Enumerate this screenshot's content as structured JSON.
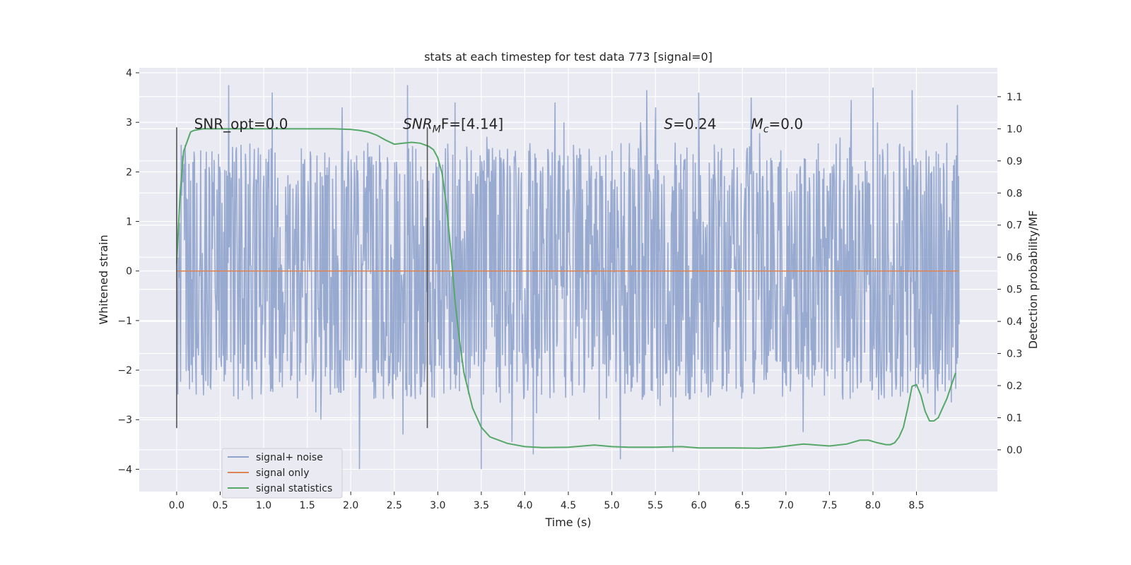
{
  "chart_data": {
    "type": "line",
    "title": "stats at each timestep for test data 773 [signal=0]",
    "xlabel": "Time (s)",
    "ylabel_left": "Whitened strain",
    "ylabel_right": "Detection probability/MF",
    "xlim": [
      -0.43,
      9.43
    ],
    "ylim_left": [
      -4.45,
      4.1
    ],
    "ylim_right": [
      -0.13,
      1.19
    ],
    "x_ticks": [
      0.0,
      0.5,
      1.0,
      1.5,
      2.0,
      2.5,
      3.0,
      3.5,
      4.0,
      4.5,
      5.0,
      5.5,
      6.0,
      6.5,
      7.0,
      7.5,
      8.0,
      8.5
    ],
    "x_tick_labels": [
      "0.0",
      "0.5",
      "1.0",
      "1.5",
      "2.0",
      "2.5",
      "3.0",
      "3.5",
      "4.0",
      "4.5",
      "5.0",
      "5.5",
      "6.0",
      "6.5",
      "7.0",
      "7.5",
      "8.0",
      "8.5"
    ],
    "y_left_ticks": [
      -4,
      -3,
      -2,
      -1,
      0,
      1,
      2,
      3,
      4
    ],
    "y_left_tick_labels": [
      "−4",
      "−3",
      "−2",
      "−1",
      "0",
      "1",
      "2",
      "3",
      "4"
    ],
    "y_right_ticks": [
      0.0,
      0.1,
      0.2,
      0.3,
      0.4,
      0.5,
      0.6,
      0.7,
      0.8,
      0.9,
      1.0,
      1.1
    ],
    "y_right_tick_labels": [
      "0.0",
      "0.1",
      "0.2",
      "0.3",
      "0.4",
      "0.5",
      "0.6",
      "0.7",
      "0.8",
      "0.9",
      "1.0",
      "1.1"
    ],
    "grid": true,
    "colors": {
      "background": "#eaeaf2",
      "grid": "#ffffff",
      "noise": "#8fa3cc",
      "signal": "#dd8452",
      "stats": "#55a868",
      "vline": "#555555"
    },
    "noise_band": {
      "time_range": [
        0.0,
        8.99
      ],
      "typical_range": [
        -1.5,
        1.7
      ],
      "min": -4.0,
      "max": 3.75
    },
    "vertical_lines": [
      0.0,
      2.88
    ],
    "vertical_line_range": [
      -3.17,
      2.9
    ],
    "series": [
      {
        "name": "signal+ noise",
        "axis": "left",
        "kind": "noise",
        "spikes": [
          {
            "x": 0.6,
            "y": 3.75
          },
          {
            "x": 1.1,
            "y": 3.6
          },
          {
            "x": 1.9,
            "y": 3.3
          },
          {
            "x": 2.65,
            "y": 3.75
          },
          {
            "x": 3.2,
            "y": 3.4
          },
          {
            "x": 4.35,
            "y": 3.4
          },
          {
            "x": 5.4,
            "y": 3.65
          },
          {
            "x": 5.5,
            "y": 3.3
          },
          {
            "x": 6.0,
            "y": 3.6
          },
          {
            "x": 6.6,
            "y": 3.5
          },
          {
            "x": 7.75,
            "y": 3.45
          },
          {
            "x": 8.0,
            "y": 3.7
          },
          {
            "x": 8.45,
            "y": 3.65
          },
          {
            "x": 8.97,
            "y": 3.35
          },
          {
            "x": 2.1,
            "y": -4.0
          },
          {
            "x": 3.5,
            "y": -4.0
          },
          {
            "x": 2.6,
            "y": -3.3
          },
          {
            "x": 3.85,
            "y": -3.45
          },
          {
            "x": 4.1,
            "y": -3.7
          },
          {
            "x": 5.1,
            "y": -3.8
          },
          {
            "x": 5.7,
            "y": -3.65
          },
          {
            "x": 7.2,
            "y": -3.25
          },
          {
            "x": 1.6,
            "y": -2.85
          },
          {
            "x": 8.9,
            "y": -2.65
          }
        ]
      },
      {
        "name": "signal only",
        "axis": "left",
        "kind": "line",
        "x": [
          0.0,
          8.99
        ],
        "y": [
          0.0,
          0.0
        ]
      },
      {
        "name": "signal statistics",
        "axis": "right",
        "kind": "line",
        "x": [
          0.0,
          0.04,
          0.08,
          0.12,
          0.16,
          0.2,
          0.3,
          0.5,
          1.0,
          1.5,
          1.8,
          2.0,
          2.1,
          2.2,
          2.3,
          2.4,
          2.5,
          2.6,
          2.7,
          2.8,
          2.9,
          2.95,
          3.0,
          3.05,
          3.1,
          3.15,
          3.2,
          3.25,
          3.3,
          3.4,
          3.5,
          3.6,
          3.8,
          4.0,
          4.2,
          4.5,
          4.8,
          5.0,
          5.2,
          5.5,
          5.8,
          6.0,
          6.4,
          6.7,
          6.9,
          7.1,
          7.2,
          7.3,
          7.5,
          7.7,
          7.85,
          7.95,
          8.05,
          8.15,
          8.2,
          8.25,
          8.3,
          8.35,
          8.4,
          8.45,
          8.5,
          8.55,
          8.6,
          8.65,
          8.7,
          8.75,
          8.8,
          8.85,
          8.9,
          8.95
        ],
        "y": [
          0.58,
          0.8,
          0.93,
          0.96,
          0.99,
          0.995,
          1.0,
          1.0,
          1.0,
          1.0,
          1.0,
          0.998,
          0.995,
          0.99,
          0.98,
          0.965,
          0.952,
          0.955,
          0.958,
          0.955,
          0.945,
          0.935,
          0.91,
          0.86,
          0.76,
          0.62,
          0.46,
          0.34,
          0.24,
          0.13,
          0.07,
          0.04,
          0.02,
          0.01,
          0.007,
          0.008,
          0.015,
          0.01,
          0.008,
          0.008,
          0.01,
          0.006,
          0.006,
          0.005,
          0.008,
          0.015,
          0.018,
          0.016,
          0.012,
          0.018,
          0.03,
          0.03,
          0.022,
          0.016,
          0.016,
          0.022,
          0.04,
          0.07,
          0.13,
          0.198,
          0.203,
          0.17,
          0.12,
          0.09,
          0.09,
          0.1,
          0.13,
          0.16,
          0.2,
          0.24
        ]
      }
    ],
    "annotations": [
      {
        "name": "snr-opt",
        "prefix": "SNR_opt=0.0",
        "italic": "",
        "sub": "",
        "suffix": "",
        "x": 0.2,
        "y": 1.0
      },
      {
        "name": "snr-mf",
        "prefix": "",
        "italic": "SNR",
        "sub": "M",
        "suffix": "F=[4.14]",
        "x": 2.6,
        "y": 1.0
      },
      {
        "name": "s-value",
        "prefix": "",
        "italic": "S",
        "sub": "",
        "suffix": "=0.24",
        "x": 5.6,
        "y": 1.0
      },
      {
        "name": "mc-value",
        "prefix": "",
        "italic": "M",
        "sub": "c",
        "suffix": "=0.0",
        "x": 6.6,
        "y": 1.0
      }
    ],
    "legend": {
      "position": "lower-left",
      "entries": [
        "signal+ noise",
        "signal only",
        "signal statistics"
      ]
    }
  }
}
